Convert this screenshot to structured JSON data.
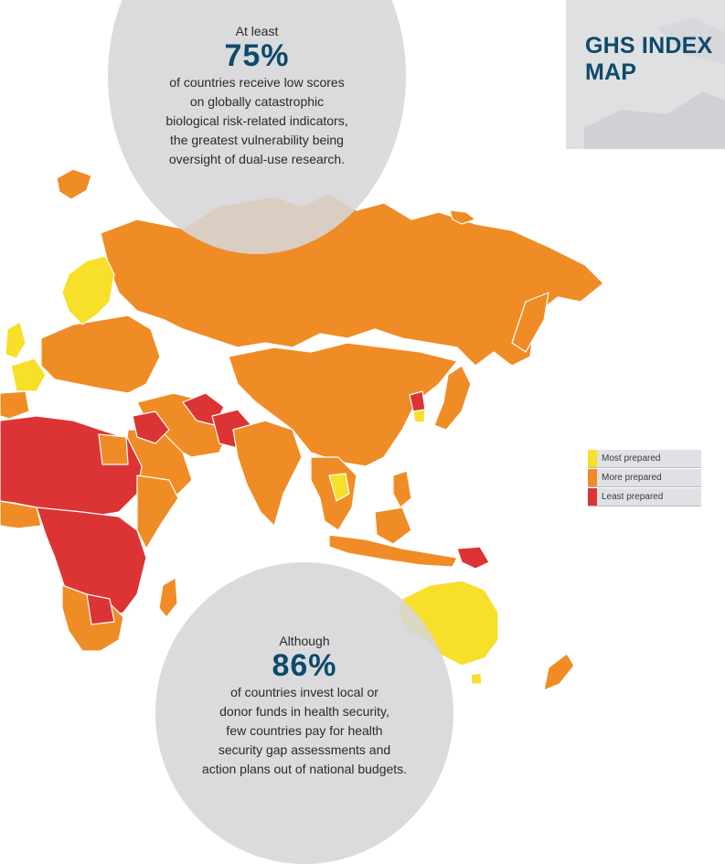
{
  "title": "GHS INDEX MAP",
  "stat_top": {
    "intro": "At least",
    "percent": "75%",
    "lines": [
      "of countries receive low scores",
      "on globally catastrophic",
      "biological risk-related indicators,",
      "the greatest vulnerability being",
      "oversight of dual-use research."
    ]
  },
  "stat_bottom": {
    "intro": "Although",
    "percent": "86%",
    "lines": [
      "of countries invest local or",
      "donor funds in health security,",
      "few countries pay for health",
      "security gap assessments and",
      "action plans out of national budgets."
    ]
  },
  "legend": {
    "items": [
      {
        "label": "Most prepared",
        "color": "#f7df2a"
      },
      {
        "label": "More prepared",
        "color": "#f08c25"
      },
      {
        "label": "Least prepared",
        "color": "#dc3434"
      }
    ]
  },
  "colors": {
    "most": "#f7df2a",
    "more": "#f08c25",
    "least": "#dc3434",
    "title": "#0d4a6b",
    "circle": "#d6d6d8"
  }
}
